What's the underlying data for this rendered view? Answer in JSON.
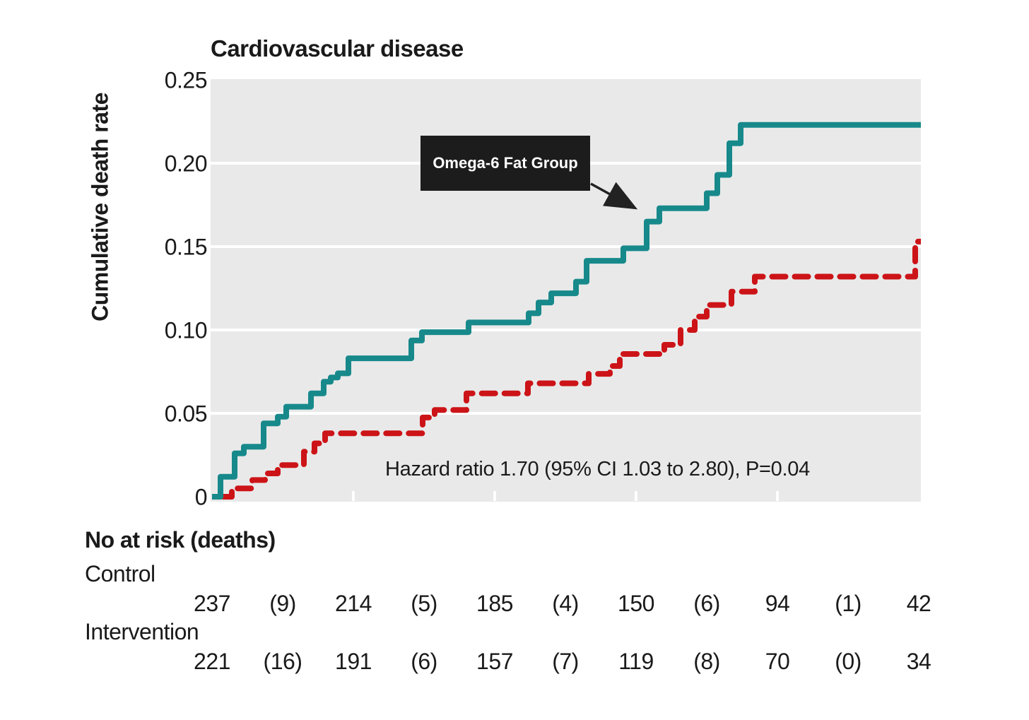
{
  "title": "Cardiovascular disease",
  "y_axis": {
    "label": "Cumulative death rate",
    "ticks": [
      {
        "label": "0.25",
        "value": 0.25
      },
      {
        "label": "0.20",
        "value": 0.2
      },
      {
        "label": "0.15",
        "value": 0.15
      },
      {
        "label": "0.10",
        "value": 0.1
      },
      {
        "label": "0.05",
        "value": 0.05
      },
      {
        "label": "0",
        "value": 0
      }
    ]
  },
  "annotation": {
    "label": "Omega-6 Fat Group"
  },
  "hazard_text": "Hazard ratio 1.70 (95% CI 1.03 to 2.80), P=0.04",
  "risk_table": {
    "header": "No at risk (deaths)",
    "rows": [
      {
        "label": "Control",
        "cells": [
          "237",
          "(9)",
          "214",
          "(5)",
          "185",
          "(4)",
          "150",
          "(6)",
          "94",
          "(1)",
          "42"
        ]
      },
      {
        "label": "Intervention",
        "cells": [
          "221",
          "(16)",
          "191",
          "(6)",
          "157",
          "(7)",
          "119",
          "(8)",
          "70",
          "(0)",
          "34"
        ]
      }
    ]
  },
  "colors": {
    "panel": "#e9e9e9",
    "gridline": "#ffffff",
    "omega6_line": "#17898b",
    "control_line": "#cc1418",
    "annotation_bg": "#1c1c1c",
    "annotation_text": "#ffffff",
    "arrow": "#222222",
    "text": "#1a1a1a"
  },
  "chart_data": {
    "type": "line",
    "subtype": "step-kaplan-meier",
    "title": "Cardiovascular disease",
    "ylabel": "Cumulative death rate",
    "ylim": [
      0,
      0.25
    ],
    "yticks": [
      0,
      0.05,
      0.1,
      0.15,
      0.2,
      0.25
    ],
    "x_units_range": [
      0,
      5.02
    ],
    "x_tick_positions_units": [
      1,
      2,
      3,
      4
    ],
    "x_tick_labels": [],
    "grid": "horizontal-white-on-gray",
    "legend": "black annotation box with arrow pointing at solid line",
    "series": [
      {
        "name": "Omega-6 Fat Group (Intervention)",
        "style": "solid",
        "color": "#17898b",
        "x_end": 5.02,
        "steps": [
          [
            0,
            0
          ],
          [
            0.06,
            0.012
          ],
          [
            0.16,
            0.026
          ],
          [
            0.225,
            0.03
          ],
          [
            0.365,
            0.044
          ],
          [
            0.465,
            0.048
          ],
          [
            0.525,
            0.054
          ],
          [
            0.7,
            0.062
          ],
          [
            0.79,
            0.069
          ],
          [
            0.84,
            0.0715
          ],
          [
            0.89,
            0.074
          ],
          [
            0.965,
            0.083
          ],
          [
            1.41,
            0.0937
          ],
          [
            1.485,
            0.0987
          ],
          [
            1.815,
            0.1045
          ],
          [
            2.24,
            0.11
          ],
          [
            2.31,
            0.1165
          ],
          [
            2.4,
            0.122
          ],
          [
            2.575,
            0.129
          ],
          [
            2.65,
            0.1415
          ],
          [
            2.91,
            0.149
          ],
          [
            3.075,
            0.165
          ],
          [
            3.165,
            0.173
          ],
          [
            3.5,
            0.182
          ],
          [
            3.575,
            0.193
          ],
          [
            3.66,
            0.212
          ],
          [
            3.74,
            0.223
          ]
        ]
      },
      {
        "name": "Control",
        "style": "dashed",
        "color": "#cc1418",
        "x_end": 5.02,
        "steps": [
          [
            0.08,
            0
          ],
          [
            0.14,
            0.005
          ],
          [
            0.285,
            0.01
          ],
          [
            0.375,
            0.014
          ],
          [
            0.465,
            0.019
          ],
          [
            0.65,
            0.027
          ],
          [
            0.725,
            0.032
          ],
          [
            0.8,
            0.038
          ],
          [
            1.49,
            0.0475
          ],
          [
            1.575,
            0.052
          ],
          [
            1.8,
            0.062
          ],
          [
            2.235,
            0.068
          ],
          [
            2.665,
            0.0737
          ],
          [
            2.815,
            0.0784
          ],
          [
            2.885,
            0.0856
          ],
          [
            3.2,
            0.0911
          ],
          [
            3.315,
            0.1
          ],
          [
            3.415,
            0.108
          ],
          [
            3.5,
            0.115
          ],
          [
            3.675,
            0.123
          ],
          [
            3.84,
            0.132
          ],
          [
            4.975,
            0.153
          ]
        ]
      }
    ]
  }
}
